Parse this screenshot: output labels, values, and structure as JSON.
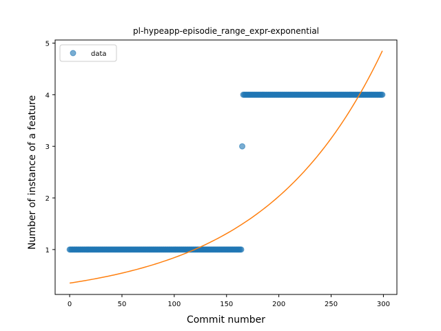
{
  "chart_data": {
    "type": "scatter",
    "title": "pl-hypeapp-episodie_range_expr-exponential",
    "xlabel": "Commit number",
    "ylabel": "Number of instance of a feature",
    "xlim": [
      -13.9,
      312.9
    ],
    "ylim": [
      0.13,
      5.06
    ],
    "xticks": [
      0,
      50,
      100,
      150,
      200,
      250,
      300
    ],
    "yticks": [
      1,
      2,
      3,
      4,
      5
    ],
    "grid": false,
    "legend_position": "top-left",
    "series": [
      {
        "name": "data",
        "kind": "scatter",
        "color": "#1f77b4",
        "segments": [
          {
            "x_start": 0,
            "x_end": 164,
            "y": 1
          },
          {
            "x_start": 165,
            "x_end": 165,
            "y": 3
          },
          {
            "x_start": 166,
            "x_end": 299,
            "y": 4
          }
        ]
      },
      {
        "kind": "line",
        "color": "#ff7f0e",
        "model": "exponential",
        "x_range": [
          0,
          299
        ],
        "y_start": 0.35,
        "y_end": 4.85
      }
    ]
  }
}
